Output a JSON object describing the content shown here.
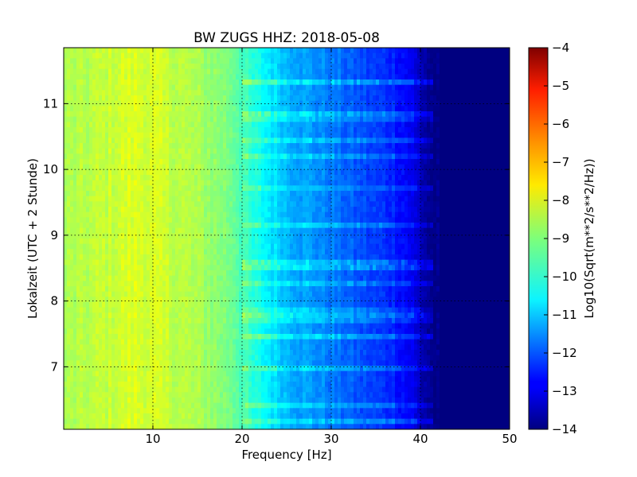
{
  "chart_data": {
    "type": "heatmap",
    "title": "BW ZUGS HHZ: 2018-05-08",
    "xlabel": "Frequency [Hz]",
    "ylabel": "Lokalzeit (UTC + 2 Stunde)",
    "colorbar_label": "Log10(Sqrt(m**2/s**2/Hz))",
    "xlim": [
      0,
      50
    ],
    "ylim": [
      11.85,
      6.05
    ],
    "x_ticks": [
      10,
      20,
      30,
      40,
      50
    ],
    "y_ticks": [
      7,
      8,
      9,
      10,
      11
    ],
    "colorbar_range": [
      -14,
      -4
    ],
    "colorbar_ticks": [
      -4,
      -5,
      -6,
      -7,
      -8,
      -9,
      -10,
      -11,
      -12,
      -13,
      -14
    ],
    "colormap": "jet",
    "grid": true,
    "profile": {
      "frequency_hz": [
        0,
        2,
        5,
        8,
        10,
        13,
        16,
        19,
        21,
        23,
        25,
        28,
        31,
        34,
        37,
        39,
        40,
        41,
        42,
        50
      ],
      "log10_amplitude": [
        -8.6,
        -8.5,
        -8.3,
        -8.1,
        -8.2,
        -8.4,
        -8.7,
        -9.1,
        -9.9,
        -10.4,
        -10.9,
        -11.3,
        -11.7,
        -12.1,
        -12.4,
        -12.9,
        -13.4,
        -13.8,
        -14.0,
        -14.0
      ]
    }
  }
}
